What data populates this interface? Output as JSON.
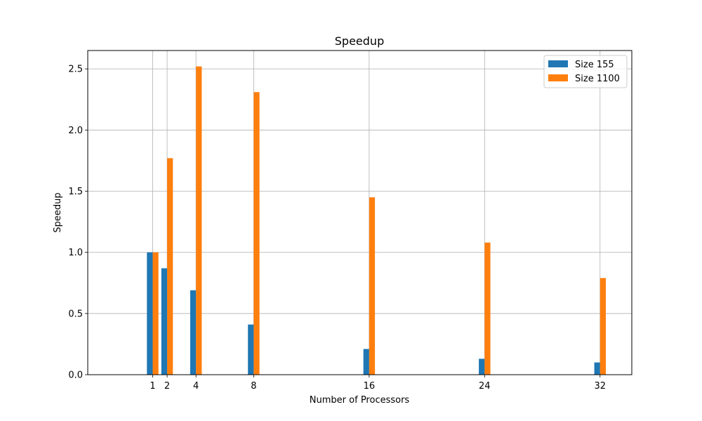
{
  "chart_data": {
    "type": "bar",
    "title": "Speedup",
    "xlabel": "Number of Processors",
    "ylabel": "Speedup",
    "x": [
      1,
      2,
      4,
      8,
      16,
      24,
      32
    ],
    "xticks": [
      "1",
      "2",
      "4",
      "8",
      "16",
      "24",
      "32"
    ],
    "xlim": [
      -3.5,
      34.2
    ],
    "ylim": [
      0,
      2.65
    ],
    "yticks": [
      "0.0",
      "0.5",
      "1.0",
      "1.5",
      "2.0",
      "2.5"
    ],
    "grid": true,
    "legend_position": "top-right",
    "series": [
      {
        "name": "Size 155",
        "color": "#1f77b4",
        "values": [
          1.0,
          0.87,
          0.69,
          0.41,
          0.21,
          0.13,
          0.1
        ]
      },
      {
        "name": "Size 1100",
        "color": "#ff7f0e",
        "values": [
          1.0,
          1.77,
          2.52,
          2.31,
          1.45,
          1.08,
          0.79
        ]
      }
    ]
  }
}
